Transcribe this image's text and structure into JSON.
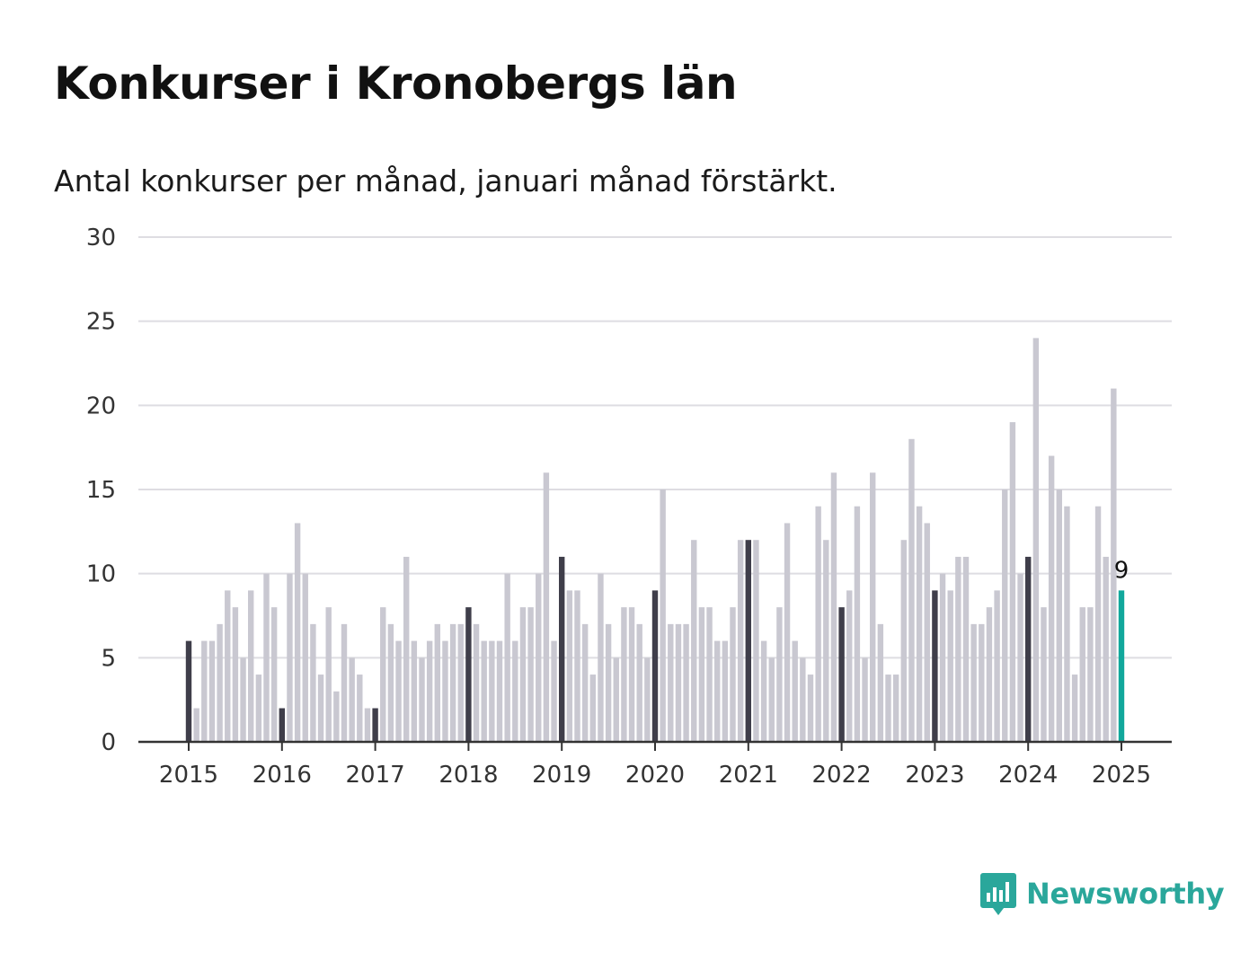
{
  "title": "Konkurser i Kronobergs län",
  "subtitle": "Antal konkurser per månad, januari månad förstärkt.",
  "brand": {
    "name": "Newsworthy",
    "color": "#2aa79b",
    "icon": "newsworthy-logo-icon"
  },
  "colors": {
    "regular": "#c9c8d1",
    "january": "#3f3e4a",
    "latest": "#12a89c",
    "grid": "#dedde2",
    "axis": "#333333"
  },
  "chart_data": {
    "type": "bar",
    "title": "Konkurser i Kronobergs län",
    "subtitle": "Antal konkurser per månad, januari månad förstärkt.",
    "xlabel": "",
    "ylabel": "",
    "ylim": [
      0,
      30
    ],
    "yticks": [
      0,
      5,
      10,
      15,
      20,
      25,
      30
    ],
    "xticks": [
      "2015",
      "2016",
      "2017",
      "2018",
      "2019",
      "2020",
      "2021",
      "2022",
      "2023",
      "2024",
      "2025"
    ],
    "grid": true,
    "start": "2015-01",
    "highlight": "january",
    "latest_label": "9",
    "values": [
      6,
      2,
      6,
      6,
      7,
      9,
      8,
      5,
      9,
      4,
      10,
      8,
      2,
      10,
      13,
      10,
      7,
      4,
      8,
      3,
      7,
      5,
      4,
      2,
      2,
      8,
      7,
      6,
      11,
      6,
      5,
      6,
      7,
      6,
      7,
      7,
      8,
      7,
      6,
      6,
      6,
      10,
      6,
      8,
      8,
      10,
      16,
      6,
      11,
      9,
      9,
      7,
      4,
      10,
      7,
      5,
      8,
      8,
      7,
      5,
      9,
      15,
      7,
      7,
      7,
      12,
      8,
      8,
      6,
      6,
      8,
      12,
      12,
      12,
      6,
      5,
      8,
      13,
      6,
      5,
      4,
      14,
      12,
      16,
      8,
      9,
      14,
      5,
      16,
      7,
      4,
      4,
      12,
      18,
      14,
      13,
      9,
      10,
      9,
      11,
      11,
      7,
      7,
      8,
      9,
      15,
      19,
      10,
      11,
      24,
      8,
      17,
      15,
      14,
      4,
      8,
      8,
      14,
      11,
      21,
      9
    ]
  }
}
